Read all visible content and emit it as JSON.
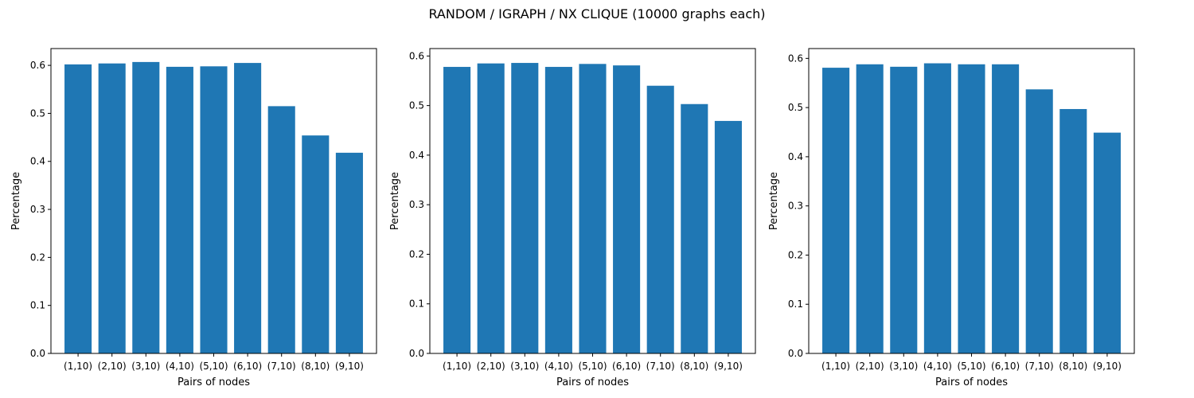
{
  "figure": {
    "suptitle": "RANDOM / IGRAPH / NX CLIQUE (10000 graphs each)"
  },
  "chart_data": [
    {
      "type": "bar",
      "categories": [
        "(1,10)",
        "(2,10)",
        "(3,10)",
        "(4,10)",
        "(5,10)",
        "(6,10)",
        "(7,10)",
        "(8,10)",
        "(9,10)"
      ],
      "values": [
        0.602,
        0.604,
        0.607,
        0.597,
        0.598,
        0.605,
        0.515,
        0.454,
        0.418
      ],
      "xlabel": "Pairs of nodes",
      "ylabel": "Percentage",
      "ylim": [
        0,
        0.635
      ],
      "yticks": [
        0.0,
        0.1,
        0.2,
        0.3,
        0.4,
        0.5,
        0.6
      ],
      "ytick_labels": [
        "0.0",
        "0.1",
        "0.2",
        "0.3",
        "0.4",
        "0.5",
        "0.6"
      ],
      "bar_color": "#1f77b4",
      "grid": false
    },
    {
      "type": "bar",
      "categories": [
        "(1,10)",
        "(2,10)",
        "(3,10)",
        "(4,10)",
        "(5,10)",
        "(6,10)",
        "(7,10)",
        "(8,10)",
        "(9,10)"
      ],
      "values": [
        0.578,
        0.585,
        0.586,
        0.578,
        0.584,
        0.581,
        0.54,
        0.503,
        0.469
      ],
      "xlabel": "Pairs of nodes",
      "ylabel": "Percentage",
      "ylim": [
        0,
        0.615
      ],
      "yticks": [
        0.0,
        0.1,
        0.2,
        0.3,
        0.4,
        0.5,
        0.6
      ],
      "ytick_labels": [
        "0.0",
        "0.1",
        "0.2",
        "0.3",
        "0.4",
        "0.5",
        "0.6"
      ],
      "bar_color": "#1f77b4",
      "grid": false
    },
    {
      "type": "bar",
      "categories": [
        "(1,10)",
        "(2,10)",
        "(3,10)",
        "(4,10)",
        "(5,10)",
        "(6,10)",
        "(7,10)",
        "(8,10)",
        "(9,10)"
      ],
      "values": [
        0.581,
        0.588,
        0.583,
        0.59,
        0.588,
        0.588,
        0.537,
        0.497,
        0.449
      ],
      "xlabel": "Pairs of nodes",
      "ylabel": "Percentage",
      "ylim": [
        0,
        0.62
      ],
      "yticks": [
        0.0,
        0.1,
        0.2,
        0.3,
        0.4,
        0.5,
        0.6
      ],
      "ytick_labels": [
        "0.0",
        "0.1",
        "0.2",
        "0.3",
        "0.4",
        "0.5",
        "0.6"
      ],
      "bar_color": "#1f77b4",
      "grid": false
    }
  ]
}
